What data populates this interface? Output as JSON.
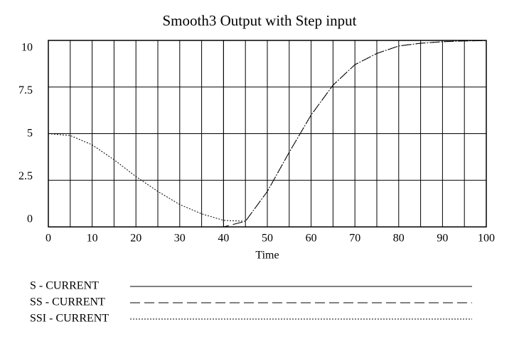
{
  "chart_data": {
    "type": "line",
    "title": "Smooth3 Output with Step input",
    "x_label": "Time",
    "xlim": [
      0,
      100
    ],
    "xticks": [
      0,
      10,
      20,
      30,
      40,
      50,
      60,
      70,
      80,
      90,
      100
    ],
    "xgrid": [
      0,
      5,
      10,
      15,
      20,
      25,
      30,
      35,
      40,
      45,
      50,
      55,
      60,
      65,
      70,
      75,
      80,
      85,
      90,
      95,
      100
    ],
    "ylim": [
      0,
      10
    ],
    "yticks": [
      0,
      2.5,
      5,
      7.5,
      10
    ],
    "grid": true,
    "series": [
      {
        "name": "S - CURRENT",
        "color": "#000000",
        "dash": "solid",
        "x": [
          0,
          40,
          40,
          100
        ],
        "values": [
          0,
          0,
          10,
          10
        ]
      },
      {
        "name": "SS - CURRENT",
        "color": "#000000",
        "dash": "dashed",
        "x": [
          0,
          5,
          10,
          15,
          20,
          25,
          30,
          35,
          40,
          45,
          50,
          55,
          60,
          65,
          70,
          75,
          80,
          85,
          90,
          95,
          100
        ],
        "values": [
          0,
          0,
          0,
          0,
          0,
          0,
          0,
          0,
          0,
          0.3,
          1.9,
          4.0,
          6.0,
          7.6,
          8.7,
          9.3,
          9.7,
          9.85,
          9.93,
          9.97,
          9.99
        ]
      },
      {
        "name": "SSI - CURRENT",
        "color": "#000000",
        "dash": "dotted",
        "x": [
          0,
          5,
          10,
          15,
          20,
          25,
          30,
          35,
          40,
          45,
          50,
          55,
          60,
          65,
          70,
          75,
          80,
          85,
          90,
          95,
          100
        ],
        "values": [
          5,
          4.9,
          4.4,
          3.6,
          2.7,
          1.9,
          1.2,
          0.7,
          0.35,
          0.3,
          1.9,
          4.0,
          6.0,
          7.6,
          8.7,
          9.3,
          9.7,
          9.85,
          9.93,
          9.97,
          9.99
        ]
      }
    ]
  }
}
